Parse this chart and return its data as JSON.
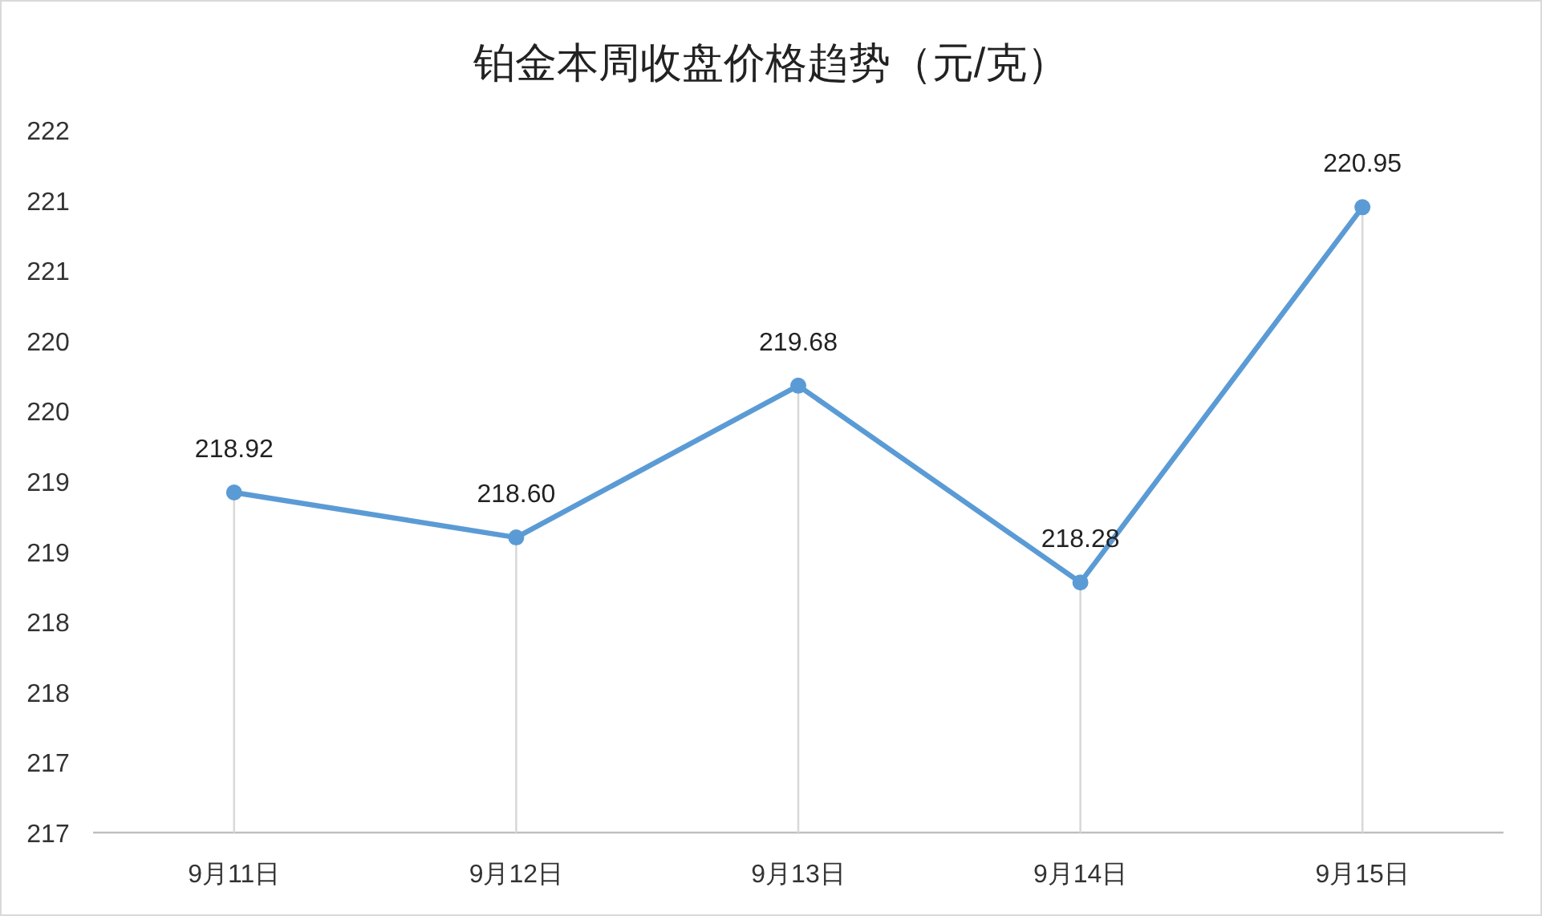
{
  "chart_data": {
    "type": "line",
    "title": "铂金本周收盘价格趋势（元/克）",
    "categories": [
      "9月11日",
      "9月12日",
      "9月13日",
      "9月14日",
      "9月15日"
    ],
    "series": [
      {
        "color": "#5b9bd5",
        "values": [
          218.92,
          218.6,
          219.68,
          218.28,
          220.95
        ],
        "value_labels": [
          "218.92",
          "218.60",
          "219.68",
          "218.28",
          "220.95"
        ]
      }
    ],
    "ylim": [
      216.5,
      221.5
    ],
    "yticks": [
      {
        "value": 216.5,
        "label": "217"
      },
      {
        "value": 217,
        "label": "217"
      },
      {
        "value": 217.5,
        "label": "218"
      },
      {
        "value": 218,
        "label": "218"
      },
      {
        "value": 218.5,
        "label": "219"
      },
      {
        "value": 219,
        "label": "219"
      },
      {
        "value": 219.5,
        "label": "220"
      },
      {
        "value": 220,
        "label": "220"
      },
      {
        "value": 220.5,
        "label": "221"
      },
      {
        "value": 221,
        "label": "221"
      },
      {
        "value": 221.5,
        "label": "222"
      }
    ],
    "grid": "x",
    "marker": "circle",
    "line_style": "solid"
  }
}
